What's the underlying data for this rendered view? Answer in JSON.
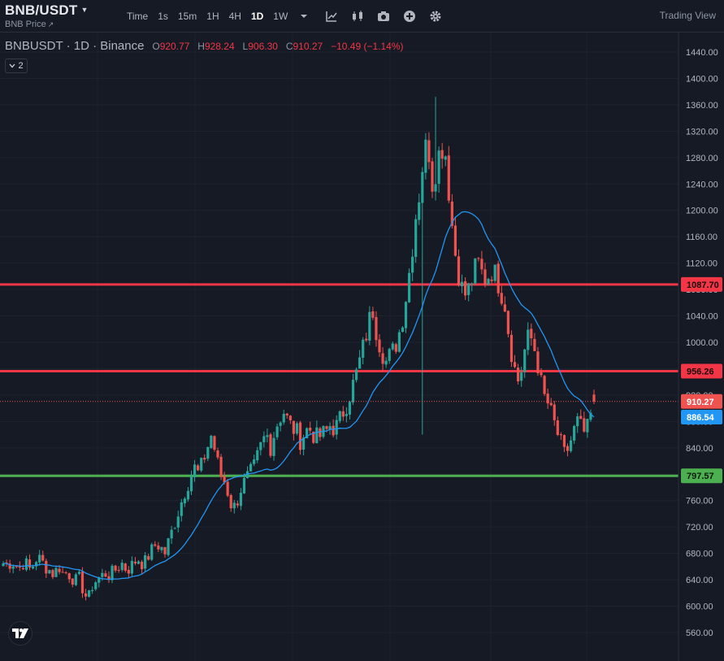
{
  "header": {
    "symbol": "BNB/USDT",
    "subtitle": "BNB Price",
    "timeframes": [
      "Time",
      "1s",
      "15m",
      "1H",
      "4H",
      "1D",
      "1W"
    ],
    "active_timeframe": "1D",
    "trading_view_label": "Trading View"
  },
  "legend": {
    "name": "BNBUSDT · 1D · Binance",
    "open_label": "O",
    "open": "920.77",
    "high_label": "H",
    "high": "928.24",
    "low_label": "L",
    "low": "906.30",
    "close_label": "C",
    "close": "910.27",
    "change": "−10.49 (−1.14%)"
  },
  "collapse_count": "2",
  "colors": {
    "up": "#26a69a",
    "down": "#ef5350",
    "resistance": "#f23645",
    "support": "#4caf50",
    "ma": "#2196f3"
  },
  "chart_data": {
    "type": "candlestick",
    "ylim": [
      540,
      1460
    ],
    "yticks": [
      560,
      600,
      640,
      680,
      720,
      760,
      800,
      840,
      880,
      920,
      960,
      1000,
      1040,
      1080,
      1120,
      1160,
      1200,
      1240,
      1280,
      1320,
      1360,
      1400,
      1440
    ],
    "horizontal_lines": [
      {
        "price": 1087.7,
        "label": "1087.70",
        "color": "#f23645"
      },
      {
        "price": 956.26,
        "label": "956.26",
        "color": "#f23645"
      },
      {
        "price": 797.57,
        "label": "797.57",
        "color": "#4caf50"
      }
    ],
    "last_price": {
      "price": 910.27,
      "label": "910.27"
    },
    "ma_value": {
      "price": 886.54,
      "label": "886.54"
    },
    "series": [
      {
        "name": "price_path",
        "values": [
          665,
          663,
          668,
          662,
          658,
          670,
          655,
          662,
          675,
          668,
          660,
          654,
          648,
          662,
          650,
          652,
          645,
          638,
          642,
          620,
          610,
          632,
          640,
          645,
          650,
          647,
          652,
          660,
          665,
          655,
          660,
          668,
          672,
          662,
          675,
          685,
          695,
          690,
          680,
          700,
          720,
          740,
          760,
          780,
          795,
          810,
          800,
          820,
          840,
          860,
          830,
          800,
          790,
          770,
          745,
          760,
          780,
          790,
          800,
          810,
          830,
          850,
          860,
          840,
          870,
          885,
          895,
          880,
          870,
          865,
          850,
          865,
          870,
          860,
          855,
          860,
          865,
          875,
          868,
          880,
          895,
          910,
          930,
          950,
          975,
          1000,
          1030,
          1050,
          1010,
          990,
          970,
          980,
          990,
          1010,
          1040,
          1080,
          1130,
          1190,
          1230,
          1290,
          1300,
          1240,
          1270,
          1300,
          1290,
          1220,
          1150,
          1110,
          1080,
          1070,
          1090,
          1110,
          1120,
          1095,
          1100,
          1110,
          1100,
          1080,
          1060,
          1010,
          970,
          940,
          960,
          1000,
          1010,
          990,
          960,
          920,
          910,
          890,
          870,
          850,
          830,
          840,
          860,
          880,
          870,
          860,
          880,
          920
        ]
      }
    ]
  }
}
